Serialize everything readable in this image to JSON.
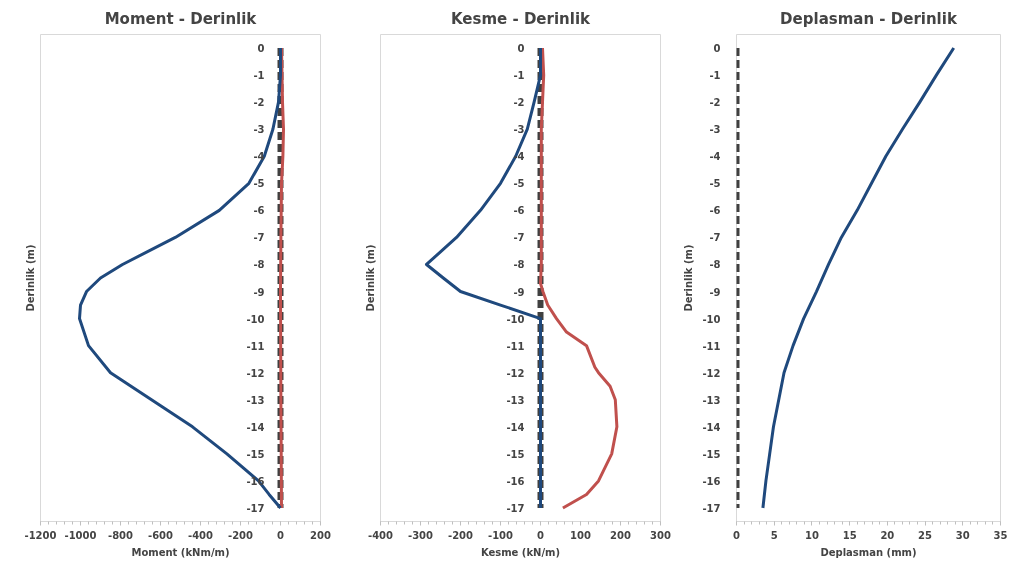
{
  "chart_data": [
    {
      "type": "line",
      "title": "Moment - Derinlik",
      "xlabel": "Moment (kNm/m)",
      "ylabel": "Derinlik (m)",
      "xlim": [
        -1200,
        200
      ],
      "xticks": [
        -1200,
        -1000,
        -800,
        -600,
        -400,
        -200,
        0,
        200
      ],
      "ylim": [
        -17.5,
        0.5
      ],
      "yticks": [
        0,
        -1,
        -2,
        -3,
        -4,
        -5,
        -6,
        -7,
        -8,
        -9,
        -10,
        -11,
        -12,
        -13,
        -14,
        -15,
        -16,
        -17
      ],
      "series": [
        {
          "color": "#404040",
          "line_style": "dashed",
          "x": [
            0,
            0,
            0,
            0,
            0,
            0,
            0,
            0,
            0,
            0,
            0,
            0,
            0,
            0,
            0,
            0,
            0,
            0
          ],
          "values": [
            0,
            -1,
            -2,
            -3,
            -4,
            -5,
            -6,
            -7,
            -8,
            -9,
            -10,
            -11,
            -12,
            -13,
            -14,
            -15,
            -16,
            -17
          ]
        },
        {
          "color": "#c0504d",
          "line_style": "solid",
          "x": [
            5,
            10,
            15,
            12,
            5,
            2,
            0,
            2,
            5
          ],
          "values": [
            0,
            -2,
            -3,
            -4,
            -5,
            -7,
            -9,
            -13,
            -17
          ]
        },
        {
          "color": "#1f497d",
          "line_style": "solid",
          "x": [
            0,
            0,
            -10,
            -38,
            -81,
            -158,
            -306,
            -526,
            -790,
            -900,
            -970,
            -1000,
            -1005,
            -960,
            -850,
            -645,
            -440,
            -268,
            -110,
            -57,
            0
          ],
          "values": [
            0,
            -1,
            -2,
            -3,
            -4,
            -5,
            -6,
            -7,
            -8,
            -8.5,
            -9,
            -9.5,
            -10,
            -11,
            -12,
            -13,
            -14,
            -15,
            -16,
            -16.5,
            -17
          ]
        }
      ]
    },
    {
      "type": "line",
      "title": "Kesme - Derinlik",
      "xlabel": "Kesme (kN/m)",
      "ylabel": "Derinlik (m)",
      "xlim": [
        -400,
        300
      ],
      "xticks": [
        -400,
        -300,
        -200,
        -100,
        0,
        100,
        200,
        300
      ],
      "ylim": [
        -17.5,
        0.5
      ],
      "yticks": [
        0,
        -1,
        -2,
        -3,
        -4,
        -5,
        -6,
        -7,
        -8,
        -9,
        -10,
        -11,
        -12,
        -13,
        -14,
        -15,
        -16,
        -17
      ],
      "series": [
        {
          "color": "#404040",
          "line_style": "dashed",
          "x": [
            0,
            0,
            0,
            0,
            0,
            0,
            0,
            0,
            0,
            0,
            0,
            0,
            0,
            0,
            0,
            0,
            0,
            0
          ],
          "values": [
            0,
            -1,
            -2,
            -3,
            -4,
            -5,
            -6,
            -7,
            -8,
            -9,
            -10,
            -11,
            -12,
            -13,
            -14,
            -15,
            -16,
            -17
          ]
        },
        {
          "color": "#c0504d",
          "line_style": "solid",
          "x": [
            5,
            8,
            5,
            2,
            2,
            0,
            6,
            18,
            40,
            65,
            115,
            136,
            145,
            174,
            187,
            191,
            178,
            145,
            115,
            56
          ],
          "values": [
            0,
            -1,
            -2,
            -3,
            -8,
            -8.7,
            -9,
            -9.5,
            -10,
            -10.5,
            -11,
            -11.8,
            -12,
            -12.5,
            -13,
            -14,
            -15,
            -16,
            -16.5,
            -17
          ]
        },
        {
          "color": "#1f497d",
          "line_style": "solid",
          "x": [
            0,
            0,
            -16,
            -33,
            -62,
            -100,
            -150,
            -210,
            -285,
            -243,
            -200,
            -100,
            0,
            0
          ],
          "values": [
            0,
            -1,
            -2,
            -3,
            -4,
            -5,
            -6,
            -7,
            -8,
            -8.5,
            -9,
            -9.5,
            -10,
            -17
          ]
        }
      ]
    },
    {
      "type": "line",
      "title": "Deplasman - Derinlik",
      "xlabel": "Deplasman (mm)",
      "ylabel": "Derinlik (m)",
      "xlim": [
        0,
        35
      ],
      "xticks": [
        0,
        5,
        10,
        15,
        20,
        25,
        30,
        35
      ],
      "ylim": [
        -17.5,
        0.5
      ],
      "yticks": [
        0,
        -1,
        -2,
        -3,
        -4,
        -5,
        -6,
        -7,
        -8,
        -9,
        -10,
        -11,
        -12,
        -13,
        -14,
        -15,
        -16,
        -17
      ],
      "series": [
        {
          "color": "#404040",
          "line_style": "dashed",
          "x": [
            0,
            0,
            0,
            0,
            0,
            0,
            0,
            0,
            0,
            0,
            0,
            0,
            0,
            0,
            0,
            0,
            0,
            0
          ],
          "values": [
            0,
            -1,
            -2,
            -3,
            -4,
            -5,
            -6,
            -7,
            -8,
            -9,
            -10,
            -11,
            -12,
            -13,
            -14,
            -15,
            -16,
            -17
          ]
        },
        {
          "color": "#1f497d",
          "line_style": "solid",
          "x": [
            28.8,
            26.5,
            24.3,
            22.0,
            19.8,
            17.9,
            16.0,
            13.9,
            12.2,
            10.6,
            8.9,
            7.5,
            6.3,
            5.6,
            4.9,
            4.4,
            3.9,
            3.5
          ],
          "values": [
            0,
            -1,
            -2,
            -3,
            -4,
            -5,
            -6,
            -7,
            -8,
            -9,
            -10,
            -11,
            -12,
            -13,
            -14,
            -15,
            -16,
            -17
          ]
        }
      ]
    }
  ]
}
